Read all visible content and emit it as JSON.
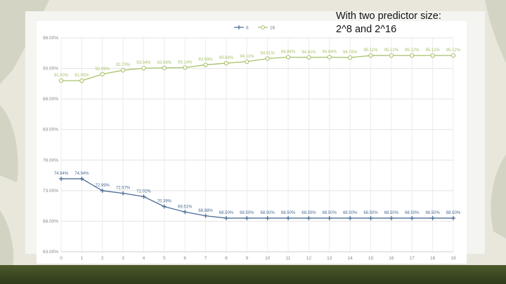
{
  "caption": {
    "line1": "With two predictor size:",
    "line2": "2^8 and 2^16"
  },
  "chart_data": {
    "type": "line",
    "x": [
      0,
      1,
      2,
      3,
      4,
      5,
      6,
      7,
      8,
      9,
      10,
      11,
      12,
      13,
      14,
      15,
      16,
      17,
      18,
      19
    ],
    "x_tick_labels": [
      "0",
      "1",
      "2",
      "3",
      "4",
      "5",
      "6",
      "7",
      "8",
      "9",
      "10",
      "11",
      "12",
      "13",
      "14",
      "15",
      "16",
      "17",
      "18",
      "19"
    ],
    "ylim": [
      63,
      98
    ],
    "y_ticks": [
      63,
      68,
      73,
      78,
      83,
      88,
      93,
      98
    ],
    "y_tick_labels": [
      "63.00%",
      "68.00%",
      "73.00%",
      "78.00%",
      "83.00%",
      "88.00%",
      "93.00%",
      "98.00%"
    ],
    "grid": true,
    "legend_position": "top-center",
    "series": [
      {
        "name": "8",
        "color": "#4a6c95",
        "marker": "plus",
        "values": [
          74.94,
          74.94,
          72.99,
          72.57,
          72.02,
          70.39,
          69.51,
          68.88,
          68.5,
          68.5,
          68.5,
          68.5,
          68.5,
          68.5,
          68.5,
          68.5,
          68.5,
          68.5,
          68.5,
          68.5
        ],
        "labels": [
          "74.94%",
          "74.94%",
          "72.99%",
          "72.57%",
          "72.02%",
          "70.39%",
          "69.51%",
          "68.88%",
          "68.50%",
          "68.50%",
          "68.50%",
          "68.50%",
          "68.50%",
          "68.50%",
          "68.50%",
          "68.50%",
          "68.50%",
          "68.50%",
          "68.50%",
          "68.50%"
        ]
      },
      {
        "name": "16",
        "color": "#a7c26a",
        "marker": "circle",
        "values": [
          91.0,
          91.0,
          92.06,
          92.7,
          93.04,
          93.09,
          93.14,
          93.59,
          93.86,
          94.11,
          94.61,
          94.84,
          94.81,
          94.84,
          94.78,
          95.11,
          95.12,
          95.12,
          95.12,
          95.12
        ],
        "labels": [
          "91.00%",
          "91.00%",
          "92.06%",
          "92.70%",
          "93.04%",
          "93.09%",
          "93.14%",
          "93.59%",
          "93.86%",
          "94.11%",
          "94.61%",
          "94.84%",
          "94.81%",
          "94.84%",
          "94.78%",
          "95.11%",
          "95.12%",
          "95.12%",
          "95.12%",
          "95.12%"
        ]
      }
    ]
  }
}
